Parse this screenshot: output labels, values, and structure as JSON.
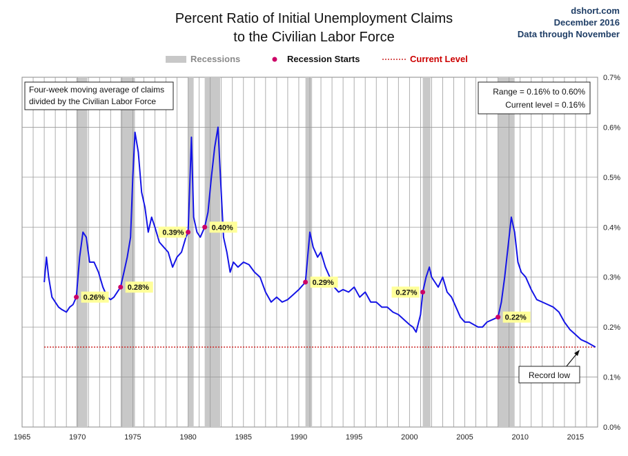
{
  "header": {
    "title_line1": "Percent Ratio of Initial Unemployment Claims",
    "title_line2": "to the Civilian Labor Force",
    "source_site": "dshort.com",
    "source_date": "December 2016",
    "source_note": "Data through November"
  },
  "legend": {
    "recessions": "Recessions",
    "recession_starts": "Recession Starts",
    "current_level": "Current Level"
  },
  "colors": {
    "line": "#1414e6",
    "recession": "#c8c8c8",
    "marker": "#cc0066",
    "current_level": "#cc2222",
    "label_bg": "#ffff99",
    "legend_recession_text": "#8a8a8a",
    "legend_current_text": "#cc0000"
  },
  "notes": {
    "top_left_line1": "Four-week moving average of claims",
    "top_left_line2": "divided by the Civilian Labor Force",
    "range": "Range = 0.16% to 0.60%",
    "current": "Current level = 0.16%",
    "record_low": "Record low"
  },
  "chart_data": {
    "type": "line",
    "x_range": [
      1965,
      2017
    ],
    "ylim": [
      0,
      0.7
    ],
    "y_unit": "%",
    "x_ticks": [
      1965,
      1970,
      1975,
      1980,
      1985,
      1990,
      1995,
      2000,
      2005,
      2010,
      2015
    ],
    "y_ticks": [
      "0.0%",
      "0.1%",
      "0.2%",
      "0.3%",
      "0.4%",
      "0.5%",
      "0.6%",
      "0.7%"
    ],
    "grid": true,
    "current_level": 0.16,
    "recessions": [
      {
        "start": 1969.9,
        "end": 1970.9
      },
      {
        "start": 1973.9,
        "end": 1975.2
      },
      {
        "start": 1980.0,
        "end": 1980.5
      },
      {
        "start": 1981.5,
        "end": 1982.9
      },
      {
        "start": 1990.6,
        "end": 1991.2
      },
      {
        "start": 2001.2,
        "end": 2001.9
      },
      {
        "start": 2008.0,
        "end": 2009.5
      }
    ],
    "recession_starts": [
      {
        "x": 1969.9,
        "y": 0.26,
        "label": "0.26%"
      },
      {
        "x": 1973.9,
        "y": 0.28,
        "label": "0.28%"
      },
      {
        "x": 1980.0,
        "y": 0.39,
        "label": "0.39%"
      },
      {
        "x": 1981.5,
        "y": 0.4,
        "label": "0.40%"
      },
      {
        "x": 1990.6,
        "y": 0.29,
        "label": "0.29%"
      },
      {
        "x": 2001.2,
        "y": 0.27,
        "label": "0.27%"
      },
      {
        "x": 2008.0,
        "y": 0.22,
        "label": "0.22%"
      }
    ],
    "series": [
      {
        "x": [
          1967.0,
          1967.2,
          1967.4,
          1967.7,
          1968.0,
          1968.3,
          1968.6,
          1969.0,
          1969.3,
          1969.6,
          1969.9,
          1970.2,
          1970.5,
          1970.8,
          1971.1,
          1971.5,
          1971.9,
          1972.3,
          1972.7,
          1973.0,
          1973.3,
          1973.6,
          1973.9,
          1974.2,
          1974.5,
          1974.8,
          1975.0,
          1975.2,
          1975.5,
          1975.8,
          1976.1,
          1976.4,
          1976.7,
          1977.0,
          1977.4,
          1977.8,
          1978.2,
          1978.6,
          1979.0,
          1979.4,
          1979.8,
          1980.0,
          1980.3,
          1980.5,
          1980.8,
          1981.1,
          1981.5,
          1981.8,
          1982.1,
          1982.4,
          1982.7,
          1982.9,
          1983.2,
          1983.5,
          1983.8,
          1984.1,
          1984.5,
          1985.0,
          1985.5,
          1986.0,
          1986.5,
          1987.0,
          1987.5,
          1988.0,
          1988.5,
          1989.0,
          1989.5,
          1990.0,
          1990.6,
          1991.0,
          1991.3,
          1991.7,
          1992.0,
          1992.4,
          1992.8,
          1993.2,
          1993.6,
          1994.0,
          1994.5,
          1995.0,
          1995.5,
          1996.0,
          1996.5,
          1997.0,
          1997.5,
          1998.0,
          1998.5,
          1999.0,
          1999.5,
          2000.0,
          2000.3,
          2000.6,
          2001.0,
          2001.2,
          2001.5,
          2001.8,
          2002.0,
          2002.3,
          2002.6,
          2003.0,
          2003.4,
          2003.8,
          2004.2,
          2004.6,
          2005.0,
          2005.4,
          2005.8,
          2006.2,
          2006.6,
          2007.0,
          2007.5,
          2008.0,
          2008.3,
          2008.6,
          2008.9,
          2009.2,
          2009.5,
          2009.8,
          2010.1,
          2010.5,
          2011.0,
          2011.5,
          2012.0,
          2012.5,
          2013.0,
          2013.5,
          2014.0,
          2014.5,
          2015.0,
          2015.5,
          2016.0,
          2016.4,
          2016.8
        ],
        "y": [
          0.29,
          0.34,
          0.3,
          0.26,
          0.25,
          0.24,
          0.235,
          0.23,
          0.24,
          0.245,
          0.26,
          0.34,
          0.39,
          0.38,
          0.33,
          0.33,
          0.31,
          0.28,
          0.26,
          0.255,
          0.26,
          0.27,
          0.28,
          0.31,
          0.34,
          0.38,
          0.5,
          0.59,
          0.55,
          0.47,
          0.44,
          0.39,
          0.42,
          0.4,
          0.37,
          0.36,
          0.35,
          0.32,
          0.34,
          0.35,
          0.38,
          0.39,
          0.58,
          0.42,
          0.39,
          0.38,
          0.4,
          0.43,
          0.5,
          0.56,
          0.6,
          0.51,
          0.38,
          0.35,
          0.31,
          0.33,
          0.32,
          0.33,
          0.325,
          0.31,
          0.3,
          0.27,
          0.25,
          0.26,
          0.25,
          0.255,
          0.265,
          0.275,
          0.29,
          0.39,
          0.36,
          0.34,
          0.35,
          0.32,
          0.3,
          0.28,
          0.27,
          0.275,
          0.27,
          0.28,
          0.26,
          0.27,
          0.25,
          0.25,
          0.24,
          0.24,
          0.23,
          0.225,
          0.215,
          0.205,
          0.2,
          0.19,
          0.225,
          0.27,
          0.3,
          0.32,
          0.3,
          0.29,
          0.28,
          0.3,
          0.27,
          0.26,
          0.24,
          0.22,
          0.21,
          0.21,
          0.205,
          0.2,
          0.2,
          0.21,
          0.215,
          0.22,
          0.25,
          0.3,
          0.36,
          0.42,
          0.39,
          0.33,
          0.31,
          0.3,
          0.275,
          0.255,
          0.25,
          0.245,
          0.24,
          0.23,
          0.21,
          0.195,
          0.185,
          0.175,
          0.17,
          0.165,
          0.16
        ]
      }
    ]
  }
}
